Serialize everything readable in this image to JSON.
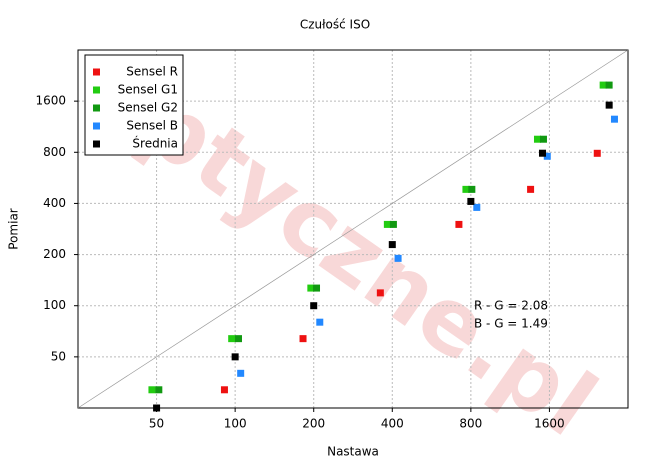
{
  "chart_data": {
    "type": "scatter",
    "title": "Czułość ISO",
    "xlabel": "Nastawa",
    "ylabel": "Pomiar",
    "log_scale": true,
    "grid": true,
    "legend": "upper left",
    "xlim": [
      25,
      3200
    ],
    "ylim": [
      25,
      3200
    ],
    "xticks": [
      50,
      100,
      200,
      400,
      800,
      1600
    ],
    "yticks": [
      50,
      100,
      200,
      400,
      800,
      1600
    ],
    "series": [
      {
        "name": "Sensel R",
        "color": "#ee1111",
        "x": [
          91,
          182,
          360,
          720,
          1355,
          2440
        ],
        "values": [
          32,
          64,
          119,
          301,
          484,
          789
        ]
      },
      {
        "name": "Sensel G1",
        "color": "#22cc11",
        "x": [
          48,
          97,
          195,
          383,
          766,
          1440,
          2570
        ],
        "values": [
          32,
          64,
          127,
          301,
          484,
          955,
          1989
        ]
      },
      {
        "name": "Sensel G2",
        "color": "#119911",
        "x": [
          51,
          103,
          205,
          404,
          807,
          1518,
          2709
        ],
        "values": [
          32,
          64,
          127,
          301,
          484,
          955,
          1989
        ]
      },
      {
        "name": "Sensel B",
        "color": "#2288ff",
        "x": [
          105,
          211,
          421,
          843,
          1570,
          2840
        ],
        "values": [
          40,
          80,
          190,
          379,
          758,
          1253
        ]
      },
      {
        "name": "Średnia",
        "color": "#000000",
        "x": [
          50,
          100,
          200,
          400,
          800,
          1505,
          2710
        ],
        "values": [
          25,
          50,
          100,
          229,
          411,
          790,
          1516
        ]
      }
    ],
    "annotations": [
      "R - G = 2.08",
      "B - G = 1.49"
    ],
    "watermark": "optyczne.pl"
  }
}
